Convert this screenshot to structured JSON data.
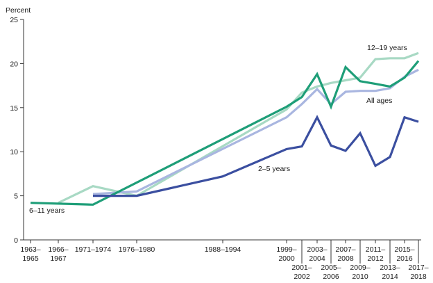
{
  "chart_data": {
    "type": "line",
    "ylabel": "Percent",
    "ylim": [
      0,
      25
    ],
    "yticks": [
      0,
      5,
      10,
      15,
      20,
      25
    ],
    "grid": false,
    "legend": "direct labels on lines",
    "x_tick_labels": [
      {
        "row1": "1963–",
        "row2": "1965"
      },
      {
        "row1": "1966–",
        "row2": "1967"
      },
      {
        "row1": "1971–1974",
        "row2": ""
      },
      {
        "row1": "1976–1980",
        "row2": ""
      },
      {
        "row1": "1988–1994",
        "row2": ""
      },
      {
        "row1": "1999–",
        "row2": "2000"
      },
      {
        "row1": "2001–",
        "row2": "2002",
        "lower": true
      },
      {
        "row1": "2003–",
        "row2": "2004"
      },
      {
        "row1": "2005–",
        "row2": "2006",
        "lower": true
      },
      {
        "row1": "2007–",
        "row2": "2008"
      },
      {
        "row1": "2009–",
        "row2": "2010",
        "lower": true
      },
      {
        "row1": "2011–",
        "row2": "2012"
      },
      {
        "row1": "2013–",
        "row2": "2014",
        "lower": true
      },
      {
        "row1": "2015–",
        "row2": "2016"
      },
      {
        "row1": "2017–",
        "row2": "2018",
        "lower": true
      }
    ],
    "series": [
      {
        "name": "6–11 years",
        "color": "#1e9e78",
        "points": [
          {
            "x": "1963–1965",
            "y": 4.2
          },
          {
            "x": "1971–1974",
            "y": 4.0
          },
          {
            "x": "1976–1980",
            "y": 6.5
          },
          {
            "x": "1999–2000",
            "y": 15.1
          },
          {
            "x": "2001–2002",
            "y": 16.2
          },
          {
            "x": "2003–2004",
            "y": 18.8
          },
          {
            "x": "2005–2006",
            "y": 15.1
          },
          {
            "x": "2007–2008",
            "y": 19.6
          },
          {
            "x": "2009–2010",
            "y": 18.0
          },
          {
            "x": "2011–2012",
            "y": 17.7
          },
          {
            "x": "2013–2014",
            "y": 17.4
          },
          {
            "x": "2015–2016",
            "y": 18.4
          },
          {
            "x": "2017–2018",
            "y": 20.3
          }
        ]
      },
      {
        "name": "12–19 years",
        "color": "#a8d9c4",
        "points": [
          {
            "x": "1966–1967",
            "y": 4.2
          },
          {
            "x": "1971–1974",
            "y": 6.1
          },
          {
            "x": "1976–1980",
            "y": 5.0
          },
          {
            "x": "1999–2000",
            "y": 14.8
          },
          {
            "x": "2001–2002",
            "y": 16.7
          },
          {
            "x": "2003–2004",
            "y": 17.4
          },
          {
            "x": "2005–2006",
            "y": 17.8
          },
          {
            "x": "2007–2008",
            "y": 18.1
          },
          {
            "x": "2009–2010",
            "y": 18.4
          },
          {
            "x": "2011–2012",
            "y": 20.5
          },
          {
            "x": "2013–2014",
            "y": 20.6
          },
          {
            "x": "2015–2016",
            "y": 20.6
          },
          {
            "x": "2017–2018",
            "y": 21.2
          }
        ]
      },
      {
        "name": "All ages",
        "color": "#a9b6e0",
        "points": [
          {
            "x": "1971–1974",
            "y": 5.2
          },
          {
            "x": "1976–1980",
            "y": 5.5
          },
          {
            "x": "1999–2000",
            "y": 13.9
          },
          {
            "x": "2001–2002",
            "y": 15.4
          },
          {
            "x": "2003–2004",
            "y": 17.1
          },
          {
            "x": "2005–2006",
            "y": 15.4
          },
          {
            "x": "2007–2008",
            "y": 16.8
          },
          {
            "x": "2009–2010",
            "y": 16.9
          },
          {
            "x": "2011–2012",
            "y": 16.9
          },
          {
            "x": "2013–2014",
            "y": 17.2
          },
          {
            "x": "2015–2016",
            "y": 18.5
          },
          {
            "x": "2017–2018",
            "y": 19.3
          }
        ]
      },
      {
        "name": "2–5 years",
        "color": "#3b4fa0",
        "points": [
          {
            "x": "1971–1974",
            "y": 5.0
          },
          {
            "x": "1976–1980",
            "y": 5.0
          },
          {
            "x": "1988–1994",
            "y": 7.2
          },
          {
            "x": "1999–2000",
            "y": 10.3
          },
          {
            "x": "2001–2002",
            "y": 10.6
          },
          {
            "x": "2003–2004",
            "y": 13.9
          },
          {
            "x": "2005–2006",
            "y": 10.7
          },
          {
            "x": "2007–2008",
            "y": 10.1
          },
          {
            "x": "2009–2010",
            "y": 12.1
          },
          {
            "x": "2011–2012",
            "y": 8.4
          },
          {
            "x": "2013–2014",
            "y": 9.4
          },
          {
            "x": "2015–2016",
            "y": 13.9
          },
          {
            "x": "2017–2018",
            "y": 13.4
          }
        ]
      }
    ]
  }
}
